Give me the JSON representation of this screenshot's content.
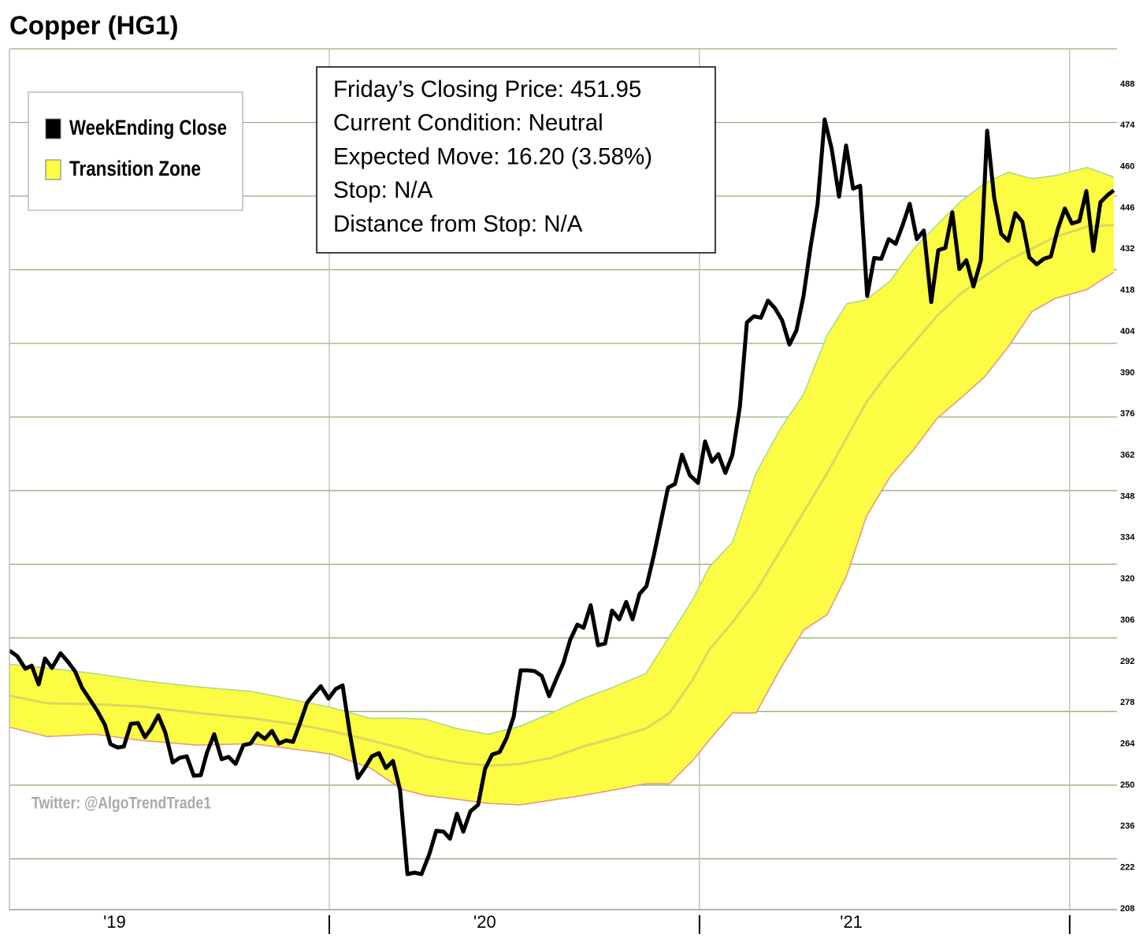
{
  "chart_data": {
    "type": "line",
    "title": "Copper (HG1)",
    "info_box": [
      "Friday’s Closing Price: 451.95",
      "Current Condition: Neutral",
      "Expected Move: 16.20 (3.58%)",
      "Stop: N/A",
      "Distance from Stop: N/A"
    ],
    "watermark": "Twitter: @AlgoTrendTrade1",
    "legend": "top-left",
    "xlim": [
      2019.136,
      2022.128
    ],
    "xticks": [
      {
        "value": 2019.42,
        "label": "'19"
      },
      {
        "value": 2020.42,
        "label": "'20"
      },
      {
        "value": 2021.41,
        "label": "'21"
      }
    ],
    "xgrid": [
      2020,
      2021,
      2022
    ],
    "ylim": [
      208,
      500
    ],
    "yticks": [
      208,
      222,
      236,
      250,
      264,
      278,
      292,
      306,
      320,
      334,
      348,
      362,
      376,
      390,
      404,
      418,
      432,
      446,
      460,
      474,
      488
    ],
    "ygrid": [
      225,
      250,
      275,
      300,
      325,
      350,
      375,
      400,
      425,
      450,
      475,
      500
    ],
    "series": [
      {
        "name": "WeekEnding Close",
        "color": "#000000",
        "x": [
          2019.136,
          2019.157,
          2019.179,
          2019.196,
          2019.215,
          2019.232,
          2019.251,
          2019.274,
          2019.294,
          2019.313,
          2019.332,
          2019.353,
          2019.374,
          2019.394,
          2019.409,
          2019.428,
          2019.445,
          2019.464,
          2019.483,
          2019.502,
          2019.519,
          2019.538,
          2019.557,
          2019.577,
          2019.596,
          2019.615,
          2019.634,
          2019.653,
          2019.67,
          2019.689,
          2019.709,
          2019.728,
          2019.747,
          2019.768,
          2019.787,
          2019.806,
          2019.826,
          2019.845,
          2019.864,
          2019.883,
          2019.902,
          2019.921,
          2019.94,
          2019.957,
          2019.977,
          2019.998,
          2020.017,
          2020.036,
          2020.055,
          2020.077,
          2020.096,
          2020.115,
          2020.134,
          2020.153,
          2020.172,
          2020.191,
          2020.211,
          2020.23,
          2020.249,
          2020.27,
          2020.289,
          2020.309,
          2020.326,
          2020.345,
          2020.362,
          2020.381,
          2020.402,
          2020.421,
          2020.44,
          2020.46,
          2020.479,
          2020.498,
          2020.517,
          2020.536,
          2020.555,
          2020.574,
          2020.594,
          2020.613,
          2020.632,
          2020.651,
          2020.67,
          2020.687,
          2020.706,
          2020.726,
          2020.745,
          2020.764,
          2020.783,
          2020.802,
          2020.819,
          2020.838,
          2020.857,
          2020.877,
          2020.896,
          2020.915,
          2020.934,
          2020.953,
          2020.974,
          2020.996,
          2021.015,
          2021.034,
          2021.051,
          2021.07,
          2021.089,
          2021.109,
          2021.128,
          2021.147,
          2021.166,
          2021.185,
          2021.204,
          2021.223,
          2021.243,
          2021.262,
          2021.281,
          2021.3,
          2021.319,
          2021.338,
          2021.357,
          2021.377,
          2021.396,
          2021.415,
          2021.434,
          2021.453,
          2021.472,
          2021.491,
          2021.511,
          2021.53,
          2021.549,
          2021.568,
          2021.587,
          2021.606,
          2021.626,
          2021.645,
          2021.664,
          2021.683,
          2021.702,
          2021.721,
          2021.74,
          2021.76,
          2021.777,
          2021.796,
          2021.815,
          2021.834,
          2021.853,
          2021.872,
          2021.891,
          2021.911,
          2021.93,
          2021.949,
          2021.968,
          2021.987,
          2022.006,
          2022.026,
          2022.045,
          2022.064,
          2022.083,
          2022.102,
          2022.119
        ],
        "values": [
          295.7,
          293.8,
          289.5,
          290.6,
          284.2,
          293.0,
          289.8,
          294.8,
          291.9,
          288.7,
          283.1,
          279.1,
          275.1,
          270.5,
          263.9,
          262.8,
          263.1,
          270.8,
          271.1,
          266.3,
          269.2,
          273.7,
          267.9,
          257.7,
          259.3,
          259.8,
          253.2,
          253.4,
          261.2,
          267.3,
          258.8,
          259.6,
          257.2,
          263.6,
          264.1,
          267.6,
          265.7,
          268.4,
          264.1,
          265.2,
          264.7,
          271.1,
          278.0,
          280.7,
          283.6,
          279.4,
          282.6,
          283.9,
          267.9,
          252.4,
          255.8,
          259.8,
          260.9,
          255.8,
          258.2,
          248.4,
          219.8,
          220.3,
          219.8,
          226.5,
          234.5,
          234.2,
          231.8,
          240.3,
          234.2,
          241.1,
          243.3,
          255.6,
          260.4,
          261.2,
          266.0,
          273.2,
          289.0,
          289.0,
          288.7,
          287.1,
          280.2,
          286.0,
          291.4,
          299.4,
          304.5,
          303.4,
          311.1,
          297.5,
          298.1,
          309.3,
          306.3,
          312.2,
          306.3,
          314.9,
          317.6,
          328.2,
          339.7,
          351.0,
          352.3,
          362.2,
          355.2,
          352.6,
          366.7,
          359.8,
          362.4,
          356.0,
          362.2,
          378.5,
          407.1,
          409.2,
          408.7,
          414.5,
          411.9,
          407.9,
          399.6,
          404.4,
          416.1,
          432.7,
          447.1,
          476.0,
          466.1,
          449.8,
          467.2,
          452.5,
          453.5,
          416.1,
          429.0,
          428.7,
          435.4,
          433.8,
          440.2,
          447.4,
          435.4,
          438.3,
          414.0,
          431.6,
          432.4,
          444.5,
          425.2,
          428.2,
          419.3,
          428.2,
          472.2,
          449.5,
          437.2,
          434.8,
          444.2,
          441.3,
          429.2,
          426.8,
          428.7,
          429.5,
          438.8,
          445.8,
          440.7,
          441.5,
          451.7,
          431.4,
          447.9,
          450.3,
          451.95
        ]
      },
      {
        "name": "Transition Zone",
        "color": "#fcfc44",
        "upper_color": "#a8d890",
        "lower_color": "#e89080",
        "middle_color": "#d9d860",
        "x": [
          2019.136,
          2019.238,
          2019.366,
          2019.494,
          2019.643,
          2019.791,
          2019.919,
          2020.004,
          2020.111,
          2020.196,
          2020.26,
          2020.345,
          2020.43,
          2020.515,
          2020.6,
          2020.685,
          2020.77,
          2020.855,
          2020.919,
          2020.983,
          2021.026,
          2021.089,
          2021.153,
          2021.217,
          2021.281,
          2021.345,
          2021.398,
          2021.451,
          2021.515,
          2021.579,
          2021.643,
          2021.706,
          2021.77,
          2021.834,
          2021.898,
          2021.962,
          2022.047,
          2022.119
        ],
        "upper": [
          291.1,
          289.8,
          287.9,
          285.5,
          283.4,
          281.8,
          278.6,
          276.4,
          272.7,
          272.7,
          272.4,
          269.2,
          267.3,
          270.0,
          274.5,
          279.4,
          283.4,
          287.9,
          300.5,
          313.3,
          324.0,
          332.5,
          356.0,
          370.7,
          382.7,
          402.8,
          413.5,
          414.8,
          421.2,
          432.2,
          440.4,
          448.2,
          454.3,
          458.1,
          455.9,
          457.0,
          459.7,
          456.5
        ],
        "middle": [
          280.4,
          277.8,
          277.5,
          276.7,
          274.5,
          272.7,
          270.5,
          268.4,
          265.2,
          262.5,
          259.8,
          257.7,
          256.6,
          257.2,
          259.3,
          263.1,
          266.0,
          269.2,
          274.5,
          286.0,
          295.9,
          305.3,
          316.0,
          329.3,
          342.7,
          356.0,
          368.1,
          380.1,
          390.8,
          400.1,
          409.5,
          416.9,
          422.8,
          428.2,
          432.2,
          436.2,
          439.6,
          440.2
        ],
        "lower": [
          269.7,
          266.5,
          267.3,
          265.2,
          263.6,
          264.1,
          262.0,
          260.6,
          255.8,
          248.6,
          246.5,
          245.2,
          243.8,
          243.3,
          244.9,
          246.5,
          248.4,
          250.5,
          250.5,
          258.5,
          265.2,
          274.5,
          274.5,
          289.2,
          302.6,
          307.9,
          321.3,
          341.3,
          354.7,
          364.0,
          374.7,
          381.4,
          388.6,
          398.8,
          410.8,
          415.3,
          418.3,
          424.2
        ]
      }
    ]
  }
}
